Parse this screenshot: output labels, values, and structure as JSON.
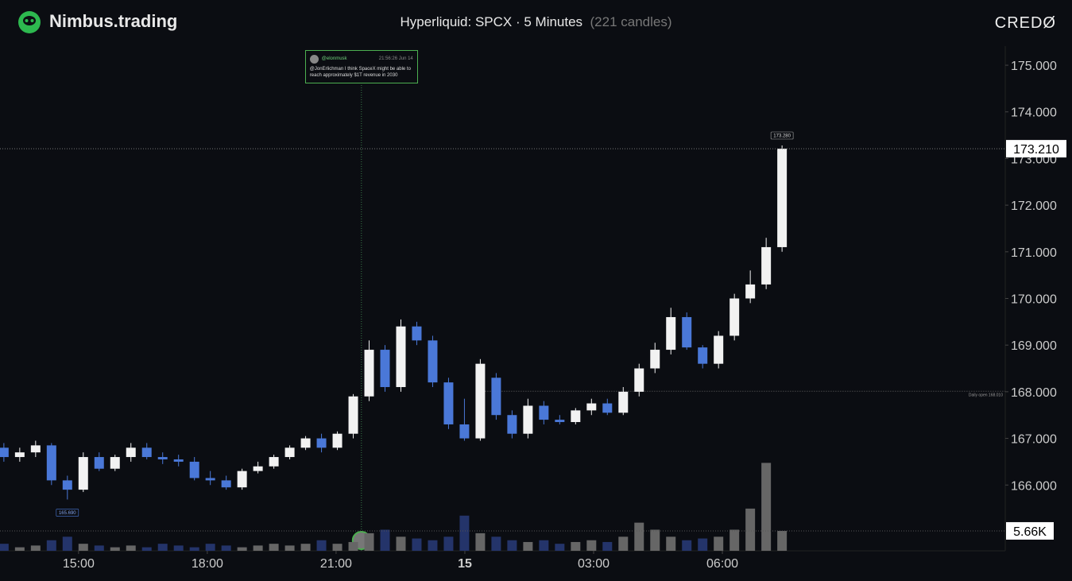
{
  "header": {
    "brand": "Nimbus.trading",
    "title": "Hyperliquid: SPCX · 5 Minutes",
    "candle_count": "(221 candles)",
    "logo": "CREDØ"
  },
  "chart_data": {
    "type": "candlestick",
    "up_color": "#f2f2f2",
    "down_color": "#4a78d8",
    "x": [
      13.26,
      13.63,
      14.0,
      14.37,
      14.74,
      15.11,
      15.48,
      15.85,
      16.22,
      16.59,
      16.96,
      17.33,
      17.7,
      18.07,
      18.44,
      18.81,
      19.18,
      19.55,
      19.92,
      20.29,
      20.66,
      21.03,
      21.4,
      21.77,
      22.14,
      22.51,
      22.88,
      23.25,
      23.62,
      23.99,
      24.36,
      24.73,
      25.1,
      25.47,
      25.84,
      26.21,
      26.58,
      26.95,
      27.32,
      27.69,
      28.06,
      28.43,
      28.8,
      29.17,
      29.54,
      29.91,
      30.28,
      30.65,
      31.02,
      31.39
    ],
    "open": [
      166.8,
      166.6,
      166.7,
      166.85,
      166.1,
      165.9,
      166.6,
      166.35,
      166.6,
      166.8,
      166.6,
      166.55,
      166.5,
      166.15,
      166.1,
      165.95,
      166.3,
      166.4,
      166.6,
      166.8,
      167.0,
      166.8,
      167.1,
      167.9,
      168.9,
      168.1,
      169.4,
      169.1,
      168.2,
      167.3,
      167.0,
      168.3,
      167.5,
      167.1,
      167.7,
      167.4,
      167.35,
      167.6,
      167.75,
      167.55,
      168.0,
      168.5,
      168.9,
      169.6,
      168.95,
      168.6,
      169.2,
      170.0,
      170.3,
      171.1
    ],
    "high": [
      166.9,
      166.8,
      166.95,
      166.9,
      166.2,
      166.7,
      166.7,
      166.65,
      166.9,
      166.9,
      166.7,
      166.65,
      166.6,
      166.3,
      166.2,
      166.35,
      166.5,
      166.65,
      166.85,
      167.05,
      167.1,
      167.15,
      167.95,
      169.1,
      169.0,
      169.55,
      169.5,
      169.2,
      168.3,
      167.85,
      168.7,
      168.4,
      167.6,
      167.85,
      167.8,
      167.5,
      167.65,
      167.85,
      167.85,
      168.1,
      168.6,
      169.05,
      169.8,
      169.7,
      169.0,
      169.3,
      170.1,
      170.6,
      171.3,
      173.28
    ],
    "low": [
      166.5,
      166.5,
      166.6,
      166.0,
      165.69,
      165.85,
      166.3,
      166.3,
      166.5,
      166.55,
      166.45,
      166.4,
      166.1,
      166.0,
      165.9,
      165.9,
      166.25,
      166.35,
      166.55,
      166.75,
      166.7,
      166.75,
      167.0,
      167.8,
      168.0,
      168.0,
      169.0,
      168.1,
      167.2,
      166.95,
      166.95,
      167.4,
      167.0,
      167.0,
      167.3,
      167.3,
      167.3,
      167.5,
      167.5,
      167.5,
      167.9,
      168.4,
      168.8,
      168.9,
      168.5,
      168.5,
      169.1,
      169.9,
      170.2,
      171.0
    ],
    "close": [
      166.6,
      166.7,
      166.85,
      166.1,
      165.9,
      166.6,
      166.35,
      166.6,
      166.8,
      166.6,
      166.55,
      166.5,
      166.15,
      166.1,
      165.95,
      166.3,
      166.4,
      166.6,
      166.8,
      167.0,
      166.8,
      167.1,
      167.9,
      168.9,
      168.1,
      169.4,
      169.1,
      168.2,
      167.3,
      167.0,
      168.6,
      167.5,
      167.1,
      167.7,
      167.4,
      167.35,
      167.6,
      167.75,
      167.55,
      168.0,
      168.5,
      168.9,
      169.6,
      168.95,
      168.6,
      169.2,
      170.0,
      170.3,
      171.1,
      173.21
    ],
    "volume": [
      2,
      1,
      1.5,
      3,
      4,
      2,
      1.5,
      1,
      1.5,
      1,
      2,
      1.5,
      1,
      2,
      1.5,
      1,
      1.5,
      2,
      1.5,
      2,
      3,
      2,
      2.5,
      5,
      6,
      4,
      3.5,
      3,
      4,
      10,
      5,
      4,
      3,
      2.5,
      3,
      2,
      2.5,
      3,
      2.5,
      4,
      8,
      6,
      4,
      3,
      3.5,
      4,
      6,
      12,
      25,
      5.66
    ],
    "xlim": [
      13.17,
      36.59
    ],
    "ylim": [
      164.59,
      175.41
    ],
    "vlim": [
      0,
      40
    ],
    "xticks": [
      {
        "value": 15,
        "label": "15:00"
      },
      {
        "value": 18,
        "label": "18:00"
      },
      {
        "value": 21,
        "label": "21:00"
      },
      {
        "value": 24,
        "label": "15"
      },
      {
        "value": 27,
        "label": "03:00"
      },
      {
        "value": 30,
        "label": "06:00"
      }
    ],
    "yticks": [
      {
        "value": 166,
        "label": "166.000"
      },
      {
        "value": 167,
        "label": "167.000"
      },
      {
        "value": 168,
        "label": "168.000"
      },
      {
        "value": 169,
        "label": "169.000"
      },
      {
        "value": 170,
        "label": "170.000"
      },
      {
        "value": 171,
        "label": "171.000"
      },
      {
        "value": 172,
        "label": "172.000"
      },
      {
        "value": 173,
        "label": "173.000"
      },
      {
        "value": 174,
        "label": "174.000"
      },
      {
        "value": 175,
        "label": "175.000"
      }
    ],
    "max_label": {
      "value": 173.28,
      "label": "173.280"
    },
    "min_label": {
      "value": 165.69,
      "label": "165.690"
    },
    "daily_open": {
      "value": 168.01,
      "label": "Daily open 168.010"
    },
    "last_price": {
      "value": 173.21,
      "label": "173.210"
    },
    "last_volume": {
      "value": 5.66,
      "label": "5.66K"
    },
    "event": {
      "x": 21.59,
      "user": "@elonmusk",
      "time": "21:56:26 Jun 14",
      "text": "@JonErlichman I think SpaceX might be able to reach approximately $1T revenue in 2030"
    }
  }
}
